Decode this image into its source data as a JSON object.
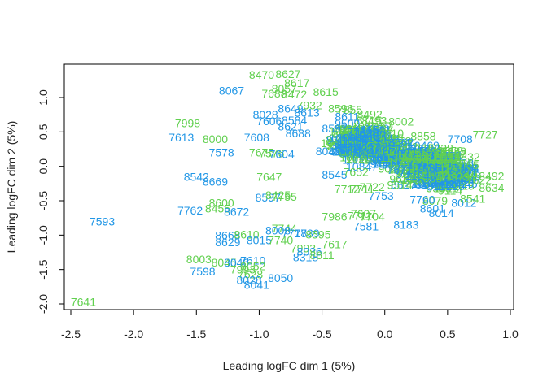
{
  "chart_data": {
    "type": "scatter",
    "title": "",
    "xlabel": "Leading logFC dim 1 (5%)",
    "ylabel": "Leading logFC dim 2 (5%)",
    "xlim": [
      -2.6,
      1.0
    ],
    "ylim": [
      -2.08,
      1.48
    ],
    "x_ticks": [
      "-2.5",
      "-2.0",
      "-1.5",
      "-1.0",
      "-0.5",
      "0.0",
      "0.5",
      "1.0"
    ],
    "x_tick_values": [
      -2.5,
      -2.0,
      -1.5,
      -1.0,
      -0.5,
      0.0,
      0.5,
      1.0
    ],
    "y_ticks": [
      "-2.0",
      "-1.5",
      "-1.0",
      "-0.5",
      "0.0",
      "0.5",
      "1.0"
    ],
    "y_tick_values": [
      -2.0,
      -1.5,
      -1.0,
      -0.5,
      0.0,
      0.5,
      1.0
    ],
    "grid": false,
    "colors": {
      "green": "#61d04f",
      "blue": "#2297e6"
    },
    "points": [
      {
        "x": -0.98,
        "y": 1.33,
        "label": "8470",
        "group": "green"
      },
      {
        "x": -0.77,
        "y": 1.34,
        "label": "8627",
        "group": "green"
      },
      {
        "x": -0.7,
        "y": 1.21,
        "label": "8617",
        "group": "green"
      },
      {
        "x": -0.8,
        "y": 1.13,
        "label": "8057",
        "group": "green"
      },
      {
        "x": -0.88,
        "y": 1.06,
        "label": "7688",
        "group": "green"
      },
      {
        "x": -0.72,
        "y": 1.05,
        "label": "8472",
        "group": "green"
      },
      {
        "x": -0.47,
        "y": 1.08,
        "label": "8615",
        "group": "green"
      },
      {
        "x": -1.22,
        "y": 1.1,
        "label": "8067",
        "group": "blue"
      },
      {
        "x": -0.75,
        "y": 0.84,
        "label": "8649",
        "group": "blue"
      },
      {
        "x": -0.6,
        "y": 0.89,
        "label": "7932",
        "group": "green"
      },
      {
        "x": -0.62,
        "y": 0.78,
        "label": "8613",
        "group": "blue"
      },
      {
        "x": -0.95,
        "y": 0.75,
        "label": "8028",
        "group": "blue"
      },
      {
        "x": -0.92,
        "y": 0.66,
        "label": "7606",
        "group": "blue"
      },
      {
        "x": -0.72,
        "y": 0.67,
        "label": "8584",
        "group": "blue"
      },
      {
        "x": -0.35,
        "y": 0.84,
        "label": "8596",
        "group": "green"
      },
      {
        "x": -0.28,
        "y": 0.82,
        "label": "7855",
        "group": "green"
      },
      {
        "x": -0.3,
        "y": 0.72,
        "label": "8611",
        "group": "blue"
      },
      {
        "x": -0.12,
        "y": 0.76,
        "label": "8492",
        "group": "green"
      },
      {
        "x": 0.13,
        "y": 0.65,
        "label": "8002",
        "group": "green"
      },
      {
        "x": -0.75,
        "y": 0.58,
        "label": "8621",
        "group": "blue"
      },
      {
        "x": -0.69,
        "y": 0.48,
        "label": "8688",
        "group": "blue"
      },
      {
        "x": -0.4,
        "y": 0.55,
        "label": "8597",
        "group": "blue"
      },
      {
        "x": -0.2,
        "y": 0.5,
        "label": "7752",
        "group": "blue"
      },
      {
        "x": 0.05,
        "y": 0.48,
        "label": "7810",
        "group": "green"
      },
      {
        "x": 0.13,
        "y": 0.35,
        "label": "8662",
        "group": "blue"
      },
      {
        "x": -1.57,
        "y": 0.63,
        "label": "7998",
        "group": "green"
      },
      {
        "x": -1.62,
        "y": 0.42,
        "label": "7613",
        "group": "blue"
      },
      {
        "x": -1.35,
        "y": 0.4,
        "label": "8000",
        "group": "green"
      },
      {
        "x": -1.02,
        "y": 0.42,
        "label": "7608",
        "group": "blue"
      },
      {
        "x": -1.3,
        "y": 0.2,
        "label": "7578",
        "group": "blue"
      },
      {
        "x": -0.98,
        "y": 0.2,
        "label": "7675",
        "group": "green"
      },
      {
        "x": -0.9,
        "y": 0.19,
        "label": "7576",
        "group": "green"
      },
      {
        "x": -0.82,
        "y": 0.18,
        "label": "7604",
        "group": "blue"
      },
      {
        "x": -0.45,
        "y": 0.22,
        "label": "8042",
        "group": "blue"
      },
      {
        "x": -0.3,
        "y": 0.28,
        "label": "8607",
        "group": "blue"
      },
      {
        "x": 0.8,
        "y": 0.46,
        "label": "7727",
        "group": "green"
      },
      {
        "x": 0.6,
        "y": 0.4,
        "label": "7708",
        "group": "blue"
      },
      {
        "x": 0.55,
        "y": 0.22,
        "label": "7689",
        "group": "green"
      },
      {
        "x": 0.55,
        "y": 0.18,
        "label": "7637",
        "group": "green"
      },
      {
        "x": 0.5,
        "y": 0.12,
        "label": "8012",
        "group": "green"
      },
      {
        "x": 0.6,
        "y": -0.05,
        "label": "7737",
        "group": "blue"
      },
      {
        "x": 0.35,
        "y": -0.02,
        "label": "7638",
        "group": "blue"
      },
      {
        "x": 0.85,
        "y": -0.14,
        "label": "8492",
        "group": "green"
      },
      {
        "x": 0.85,
        "y": -0.31,
        "label": "8634",
        "group": "green"
      },
      {
        "x": 0.75,
        "y": -0.2,
        "label": "7622",
        "group": "green"
      },
      {
        "x": 0.4,
        "y": -0.5,
        "label": "8079",
        "group": "green"
      },
      {
        "x": 0.63,
        "y": -0.53,
        "label": "8012",
        "group": "blue"
      },
      {
        "x": 0.7,
        "y": -0.47,
        "label": "8541",
        "group": "green"
      },
      {
        "x": 0.45,
        "y": -0.68,
        "label": "8014",
        "group": "blue"
      },
      {
        "x": 0.38,
        "y": -0.61,
        "label": "8601",
        "group": "blue"
      },
      {
        "x": 0.3,
        "y": -0.48,
        "label": "7760",
        "group": "blue"
      },
      {
        "x": -0.03,
        "y": -0.43,
        "label": "7753",
        "group": "blue"
      },
      {
        "x": -0.3,
        "y": -0.33,
        "label": "7712",
        "group": "green"
      },
      {
        "x": -0.18,
        "y": -0.33,
        "label": "7711",
        "group": "green"
      },
      {
        "x": -0.1,
        "y": -0.3,
        "label": "7722",
        "group": "green"
      },
      {
        "x": -0.4,
        "y": -0.12,
        "label": "8545",
        "group": "blue"
      },
      {
        "x": -0.23,
        "y": -0.08,
        "label": "7652",
        "group": "green"
      },
      {
        "x": 0.12,
        "y": -0.05,
        "label": "7671",
        "group": "blue"
      },
      {
        "x": -1.5,
        "y": -0.15,
        "label": "8542",
        "group": "blue"
      },
      {
        "x": -1.35,
        "y": -0.22,
        "label": "8669",
        "group": "blue"
      },
      {
        "x": -0.92,
        "y": -0.15,
        "label": "7647",
        "group": "green"
      },
      {
        "x": -0.93,
        "y": -0.45,
        "label": "8597",
        "group": "blue"
      },
      {
        "x": -0.85,
        "y": -0.42,
        "label": "8425",
        "group": "green"
      },
      {
        "x": -0.8,
        "y": -0.44,
        "label": "7755",
        "group": "green"
      },
      {
        "x": -1.3,
        "y": -0.53,
        "label": "8600",
        "group": "green"
      },
      {
        "x": -1.55,
        "y": -0.64,
        "label": "7762",
        "group": "blue"
      },
      {
        "x": -1.33,
        "y": -0.61,
        "label": "8455",
        "group": "green"
      },
      {
        "x": -1.18,
        "y": -0.66,
        "label": "8672",
        "group": "blue"
      },
      {
        "x": -2.25,
        "y": -0.8,
        "label": "7593",
        "group": "blue"
      },
      {
        "x": -0.4,
        "y": -0.73,
        "label": "7986",
        "group": "green"
      },
      {
        "x": -0.17,
        "y": -0.69,
        "label": "7607",
        "group": "green"
      },
      {
        "x": -0.2,
        "y": -0.72,
        "label": "7711",
        "group": "green"
      },
      {
        "x": -0.1,
        "y": -0.73,
        "label": "7704",
        "group": "green"
      },
      {
        "x": -0.15,
        "y": -0.87,
        "label": "7581",
        "group": "blue"
      },
      {
        "x": 0.17,
        "y": -0.85,
        "label": "8183",
        "group": "blue"
      },
      {
        "x": -0.8,
        "y": -0.9,
        "label": "7744",
        "group": "green"
      },
      {
        "x": -0.85,
        "y": -0.93,
        "label": "8008",
        "group": "blue"
      },
      {
        "x": -0.72,
        "y": -0.97,
        "label": "7718",
        "group": "blue"
      },
      {
        "x": -0.62,
        "y": -0.97,
        "label": "7739",
        "group": "blue"
      },
      {
        "x": -0.53,
        "y": -0.99,
        "label": "8595",
        "group": "green"
      },
      {
        "x": -1.25,
        "y": -1.0,
        "label": "8668",
        "group": "blue"
      },
      {
        "x": -1.1,
        "y": -0.99,
        "label": "8610",
        "group": "green"
      },
      {
        "x": -1.0,
        "y": -1.07,
        "label": "8015",
        "group": "blue"
      },
      {
        "x": -0.83,
        "y": -1.07,
        "label": "7740",
        "group": "green"
      },
      {
        "x": -1.25,
        "y": -1.1,
        "label": "8629",
        "group": "blue"
      },
      {
        "x": -0.4,
        "y": -1.13,
        "label": "7617",
        "group": "green"
      },
      {
        "x": -0.65,
        "y": -1.19,
        "label": "7993",
        "group": "green"
      },
      {
        "x": -0.6,
        "y": -1.24,
        "label": "8036",
        "group": "blue"
      },
      {
        "x": -0.5,
        "y": -1.29,
        "label": "8611",
        "group": "green"
      },
      {
        "x": -0.63,
        "y": -1.32,
        "label": "8318",
        "group": "blue"
      },
      {
        "x": -1.48,
        "y": -1.35,
        "label": "8003",
        "group": "green"
      },
      {
        "x": -1.28,
        "y": -1.4,
        "label": "8045",
        "group": "green"
      },
      {
        "x": -1.18,
        "y": -1.4,
        "label": "8046",
        "group": "blue"
      },
      {
        "x": -1.05,
        "y": -1.37,
        "label": "7610",
        "group": "blue"
      },
      {
        "x": -1.05,
        "y": -1.45,
        "label": "8052",
        "group": "green"
      },
      {
        "x": -1.13,
        "y": -1.5,
        "label": "7993",
        "group": "green"
      },
      {
        "x": -1.45,
        "y": -1.53,
        "label": "7598",
        "group": "blue"
      },
      {
        "x": -1.07,
        "y": -1.57,
        "label": "7628",
        "group": "green"
      },
      {
        "x": -0.83,
        "y": -1.62,
        "label": "8050",
        "group": "blue"
      },
      {
        "x": -1.08,
        "y": -1.65,
        "label": "8028",
        "group": "blue"
      },
      {
        "x": -1.02,
        "y": -1.72,
        "label": "8041",
        "group": "blue"
      },
      {
        "x": -2.4,
        "y": -1.97,
        "label": "7641",
        "group": "green"
      }
    ],
    "dense_labels": [
      "7680",
      "7712",
      "7735",
      "7770",
      "7801",
      "7822",
      "7853",
      "7874",
      "7905",
      "7921",
      "7940",
      "7966",
      "7972",
      "7989",
      "8019",
      "8024",
      "8033",
      "8039",
      "8054",
      "8061",
      "8072",
      "8088",
      "8093",
      "8102",
      "8117",
      "8125",
      "8130",
      "8142",
      "8155",
      "8163",
      "8170",
      "8188",
      "8194",
      "8206",
      "8213",
      "8229",
      "8231",
      "8247",
      "8256",
      "8262",
      "8278",
      "8283",
      "8299",
      "8301",
      "8314",
      "8326",
      "8332",
      "8347",
      "8353",
      "8368",
      "8379",
      "8384",
      "8396",
      "8405",
      "8411",
      "8427",
      "8436",
      "8443",
      "8458",
      "8461",
      "8477",
      "8488",
      "8493",
      "8501",
      "8516",
      "8523",
      "8538",
      "8549",
      "8552",
      "8566",
      "8573",
      "8589",
      "8591",
      "8604",
      "8618",
      "8625",
      "8636",
      "8641",
      "8657",
      "8663",
      "8679",
      "8684",
      "8690",
      "8702",
      "8715",
      "8721",
      "8733",
      "8746",
      "8752",
      "8764",
      "8771",
      "8785",
      "8792",
      "8806",
      "8813",
      "8827",
      "8839",
      "8841",
      "8858",
      "8863",
      "8870",
      "8889",
      "8894",
      "8905",
      "8912",
      "8928",
      "8937",
      "8944",
      "8956",
      "8963",
      "8975",
      "8981",
      "8996",
      "9003",
      "9017",
      "9024",
      "9036",
      "9042",
      "9055",
      "9068",
      "9071",
      "9089",
      "9093",
      "9107",
      "9114",
      "9126",
      "9132",
      "9145",
      "9157",
      "9160",
      "9178",
      "9183",
      "9199",
      "9204",
      "9211",
      "9225",
      "9238",
      "9246",
      "9251",
      "9267",
      "9279",
      "9282",
      "9294",
      "9306",
      "9313",
      "9327",
      "9330",
      "9348",
      "9355",
      "9361",
      "9376",
      "9384",
      "9392",
      "9403",
      "9418",
      "9426",
      "9431",
      "9447",
      "9450",
      "9465",
      "9472",
      "9488",
      "9491",
      "9509",
      "9514",
      "9520",
      "9537",
      "9545",
      "9556",
      "9568",
      "9573",
      "9589",
      "9592",
      "9608",
      "9610",
      "9624",
      "9633",
      "9649",
      "9657",
      "9661",
      "9675",
      "9686",
      "9690",
      "9704",
      "9715",
      "9723",
      "9732",
      "9748",
      "9759",
      "9766",
      "9771",
      "9787",
      "9794",
      "9801",
      "9817",
      "9828",
      "9830",
      "9846",
      "9853",
      "9869",
      "9875",
      "9882",
      "9897",
      "9902",
      "9919",
      "9923",
      "9938",
      "9941",
      "9954",
      "9967",
      "9970",
      "9985",
      "9993",
      "10008",
      "10014",
      "10027",
      "10035",
      "10049",
      "10052",
      "10061",
      "10076",
      "10083",
      "10098",
      "10102",
      "10117",
      "10126",
      "10131",
      "10145",
      "10158",
      "10163",
      "10177",
      "10189",
      "10194",
      "10208",
      "10212",
      "10229",
      "10233",
      "10241",
      "10256",
      "10267",
      "10275",
      "10288",
      "10293",
      "10301",
      "10319",
      "10324",
      "10336",
      "10342",
      "10357",
      "10368",
      "10371",
      "10385",
      "10399",
      "10403",
      "10416",
      "10422",
      "10438",
      "10447",
      "10450",
      "10469",
      "10474",
      "10486",
      "10497",
      "10505",
      "10511",
      "10528",
      "10530",
      "10544",
      "10559",
      "10562",
      "10573",
      "10587",
      "10591",
      "10606",
      "10618",
      "10624",
      "10637",
      "10645",
      "10652",
      "10668",
      "10679",
      "10683",
      "10694",
      "10702",
      "10717",
      "10725",
      "10736",
      "10748",
      "10751",
      "10769",
      "10774",
      "10780",
      "10795",
      "10803",
      "10816",
      "10829",
      "10832",
      "10847",
      "10858",
      "10861",
      "10876",
      "10884",
      "10897",
      "10909",
      "10913",
      "10925",
      "10938",
      "10946",
      "10950",
      "10963",
      "10978",
      "10987",
      "10991",
      "11004",
      "11019",
      "11022",
      "11036",
      "11045",
      "11057",
      "11068",
      "11073",
      "11081",
      "11099",
      "11106",
      "11111",
      "11124",
      "11137",
      "11148",
      "11152",
      "11169",
      "11175",
      "11187",
      "11190",
      "11208",
      "11214",
      "11220",
      "11235",
      "11249",
      "11257",
      "11266",
      "11270",
      "11284",
      "11291",
      "11305",
      "11318",
      "11323",
      "11332",
      "11347",
      "11359",
      "11364",
      "11375",
      "11380",
      "11398",
      "11402",
      "11417",
      "11426",
      "11433",
      "11441",
      "11455",
      "11469",
      "11478",
      "11485",
      "11496",
      "11504",
      "11510",
      "11527",
      "11533",
      "11541",
      "11558",
      "11566",
      "11572",
      "11589",
      "11593"
    ]
  }
}
